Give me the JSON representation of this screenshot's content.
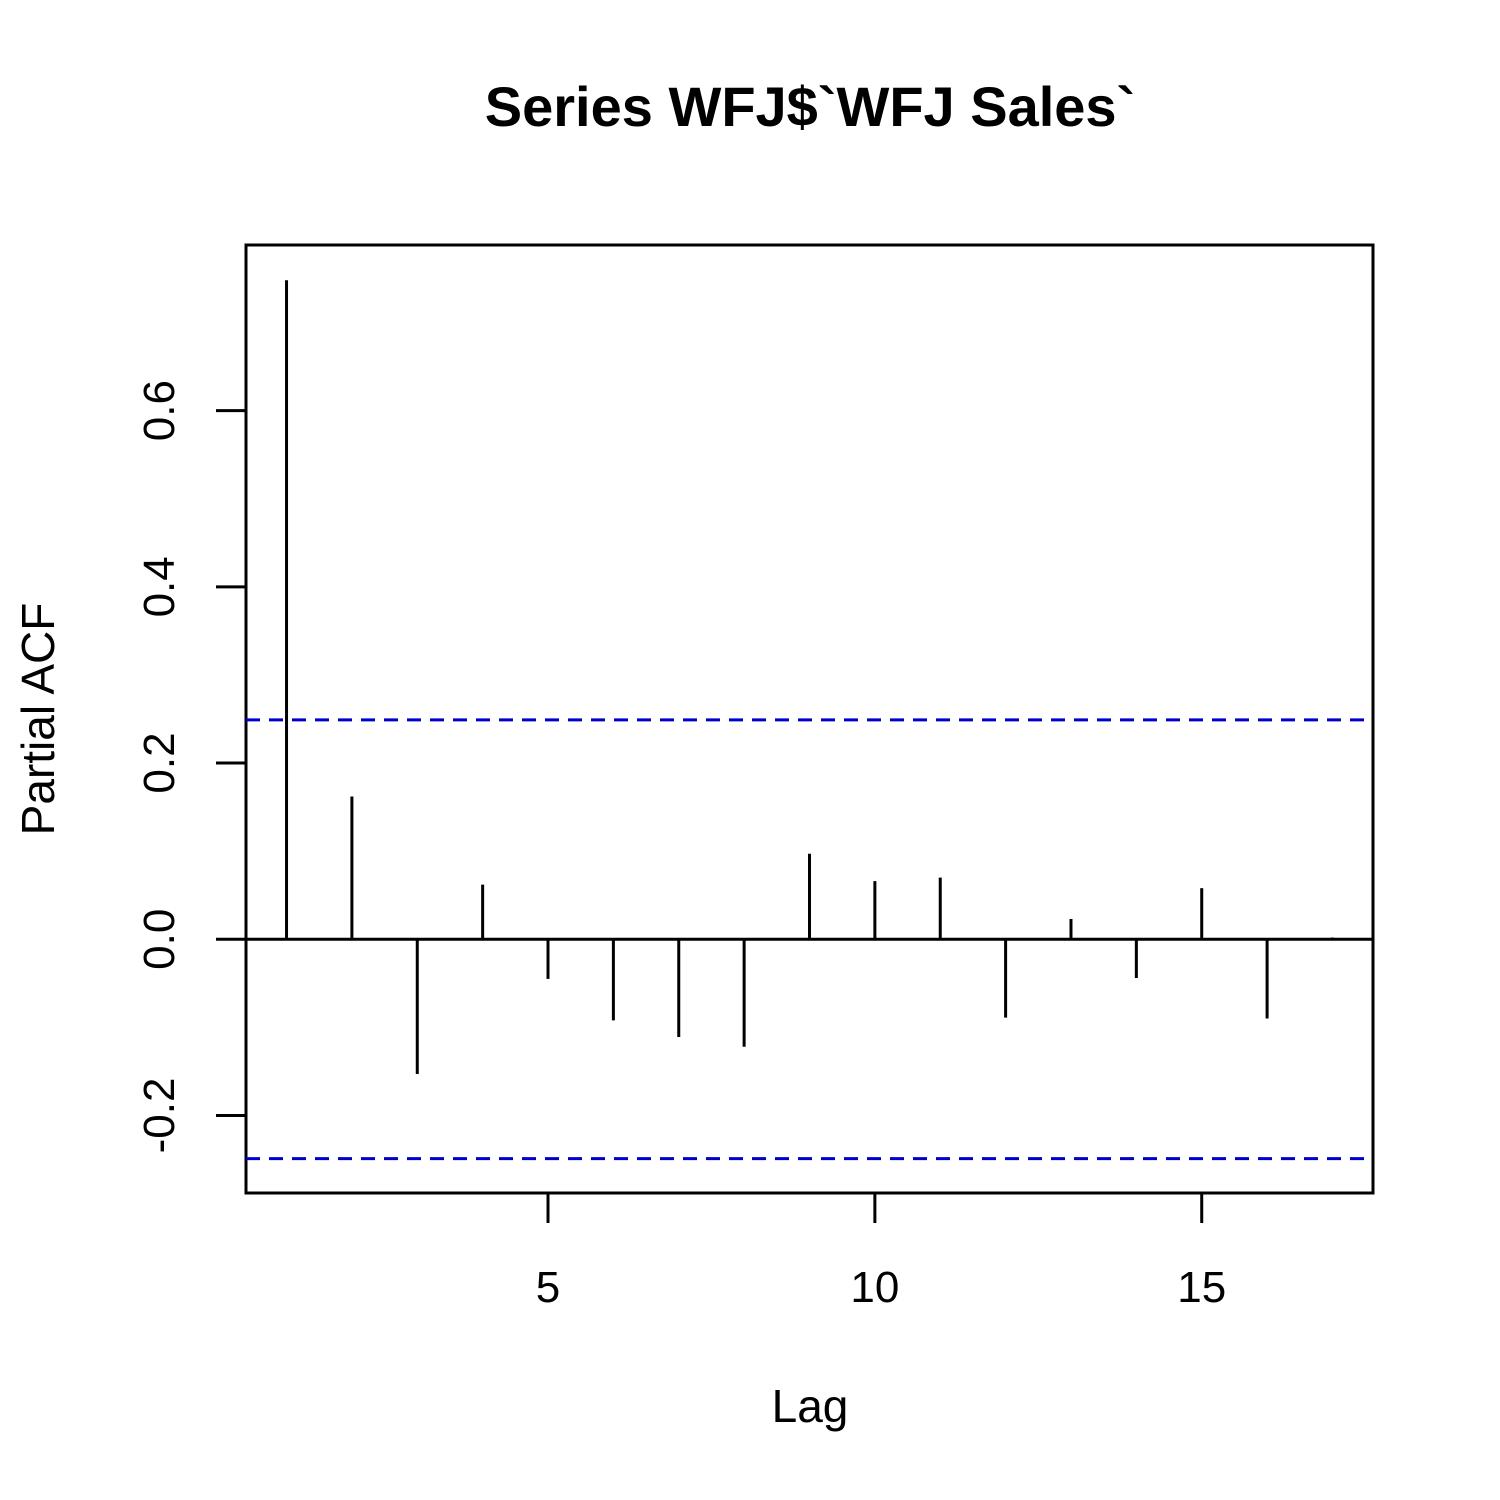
{
  "chart_data": {
    "type": "bar",
    "title": "Series  WFJ$`WFJ Sales`",
    "xlabel": "Lag",
    "ylabel": "Partial ACF",
    "xlim": [
      0.38,
      17.62
    ],
    "ylim": [
      -0.288,
      0.788
    ],
    "x_ticks": [
      5,
      10,
      15
    ],
    "x_tick_labels": [
      "5",
      "10",
      "15"
    ],
    "y_ticks": [
      -0.2,
      0.0,
      0.2,
      0.4,
      0.6
    ],
    "y_tick_labels": [
      "-0.2",
      "0.0",
      "0.2",
      "0.4",
      "0.6"
    ],
    "lags": [
      1,
      2,
      3,
      4,
      5,
      6,
      7,
      8,
      9,
      10,
      11,
      12,
      13,
      14,
      15,
      16,
      17
    ],
    "values": [
      0.748,
      0.162,
      -0.153,
      0.062,
      -0.045,
      -0.092,
      -0.111,
      -0.122,
      0.097,
      0.066,
      0.07,
      -0.089,
      0.023,
      -0.044,
      0.058,
      -0.09,
      0.002
    ],
    "confidence_bound": 0.249,
    "confidence_color": "#0000CD",
    "bar_color": "#000000",
    "grid": false,
    "legend": "none"
  }
}
